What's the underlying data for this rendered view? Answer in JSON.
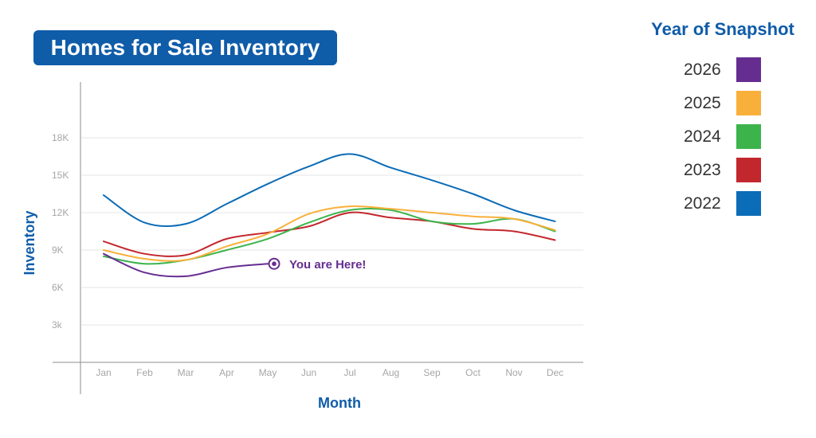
{
  "chart_data": {
    "type": "line",
    "title": "Homes for Sale Inventory",
    "xlabel": "Month",
    "ylabel": "Inventory",
    "categories": [
      "Jan",
      "Feb",
      "Mar",
      "Apr",
      "May",
      "Jun",
      "Jul",
      "Aug",
      "Sep",
      "Oct",
      "Nov",
      "Dec"
    ],
    "yticks": [
      3000,
      6000,
      9000,
      12000,
      15000,
      18000
    ],
    "ytick_labels": [
      "3k",
      "6K",
      "9K",
      "12K",
      "15K",
      "18K"
    ],
    "ylim": [
      0,
      21000
    ],
    "grid": true,
    "legend_title": "Year of Snapshot",
    "legend_position": "right",
    "series": [
      {
        "name": "2022",
        "color": "#0b6cb7",
        "values": [
          13400,
          11200,
          11100,
          12700,
          14300,
          15700,
          16700,
          15600,
          14600,
          13500,
          12200,
          11300
        ]
      },
      {
        "name": "2023",
        "color": "#c2272d",
        "values": [
          9700,
          8700,
          8600,
          9900,
          10400,
          10900,
          12000,
          11600,
          11300,
          10700,
          10500,
          9800
        ]
      },
      {
        "name": "2024",
        "color": "#3cb44b",
        "values": [
          8500,
          7900,
          8200,
          9000,
          9900,
          11200,
          12200,
          12200,
          11300,
          11100,
          11500,
          10500
        ]
      },
      {
        "name": "2025",
        "color": "#f9b03b",
        "values": [
          9000,
          8300,
          8200,
          9300,
          10300,
          11900,
          12500,
          12300,
          12000,
          11700,
          11500,
          10600
        ]
      },
      {
        "name": "2026",
        "color": "#662d91",
        "values": [
          8700,
          7200,
          6900,
          7600,
          7900,
          null,
          null,
          null,
          null,
          null,
          null,
          null
        ]
      }
    ],
    "annotation": {
      "text": "You are Here!",
      "x": "May",
      "y": 7900,
      "color": "#662d91"
    }
  }
}
